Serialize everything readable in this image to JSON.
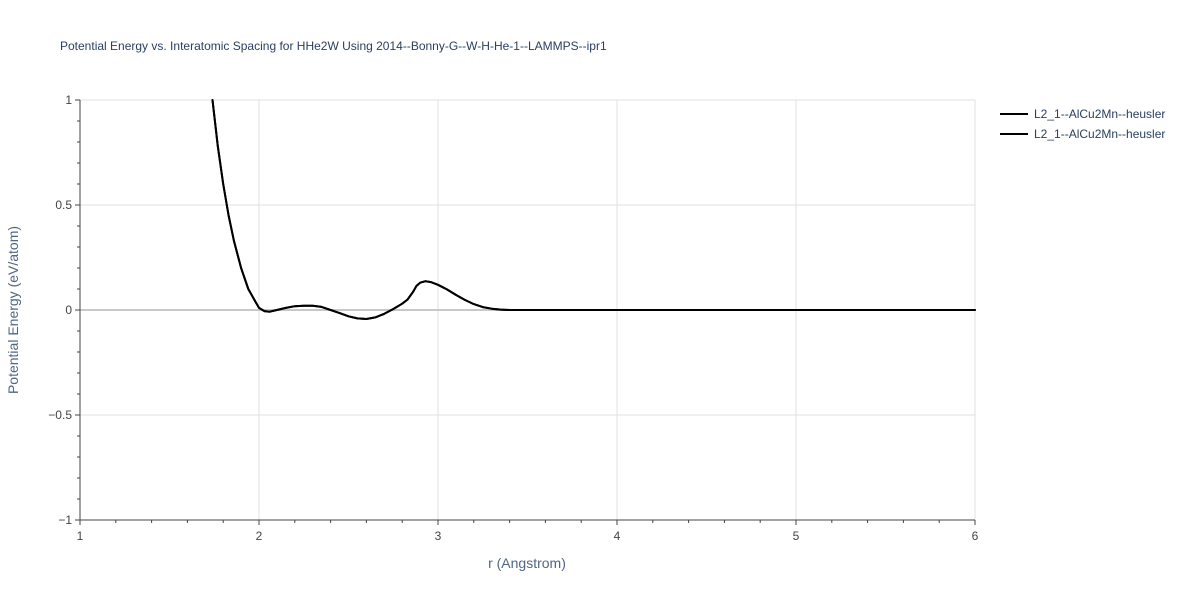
{
  "chart_data": {
    "type": "line",
    "title": "Potential Energy vs. Interatomic Spacing for HHe2W Using 2014--Bonny-G--W-H-He-1--LAMMPS--ipr1",
    "xlabel": "r (Angstrom)",
    "ylabel": "Potential Energy (eV/atom)",
    "xlim": [
      1,
      6
    ],
    "ylim": [
      -1,
      1
    ],
    "x_ticks": [
      1,
      2,
      3,
      4,
      5,
      6
    ],
    "x_tick_labels": [
      "1",
      "2",
      "3",
      "4",
      "5",
      "6"
    ],
    "y_ticks": [
      -1,
      -0.5,
      0,
      0.5,
      1
    ],
    "y_tick_labels": [
      "−1",
      "−0.5",
      "0",
      "0.5",
      "1"
    ],
    "grid": true,
    "legend_position": "top-right",
    "line_color": "#000000",
    "series": [
      {
        "name": "L2_1--AlCu2Mn--heusler",
        "x": [
          1.74,
          1.77,
          1.8,
          1.83,
          1.86,
          1.9,
          1.94,
          1.98,
          2.0,
          2.03,
          2.06,
          2.1,
          2.15,
          2.2,
          2.25,
          2.3,
          2.35,
          2.4,
          2.45,
          2.5,
          2.55,
          2.6,
          2.65,
          2.7,
          2.75,
          2.8,
          2.83,
          2.86,
          2.88,
          2.9,
          2.93,
          2.96,
          3.0,
          3.05,
          3.1,
          3.15,
          3.2,
          3.25,
          3.3,
          3.35,
          3.4,
          3.6,
          4.0,
          5.0,
          6.0
        ],
        "y": [
          1.0,
          0.78,
          0.6,
          0.45,
          0.33,
          0.2,
          0.1,
          0.04,
          0.01,
          -0.005,
          -0.008,
          0.0,
          0.01,
          0.018,
          0.02,
          0.02,
          0.015,
          0.0,
          -0.015,
          -0.03,
          -0.04,
          -0.043,
          -0.035,
          -0.018,
          0.005,
          0.03,
          0.05,
          0.085,
          0.115,
          0.13,
          0.137,
          0.133,
          0.12,
          0.098,
          0.072,
          0.048,
          0.028,
          0.014,
          0.006,
          0.002,
          0.0,
          0.0,
          0.0,
          0.0,
          0.0
        ]
      },
      {
        "name": "L2_1--AlCu2Mn--heusler",
        "x": [
          1.74,
          1.77,
          1.8,
          1.83,
          1.86,
          1.9,
          1.94,
          1.98,
          2.0,
          2.03,
          2.06,
          2.1,
          2.15,
          2.2,
          2.25,
          2.3,
          2.35,
          2.4,
          2.45,
          2.5,
          2.55,
          2.6,
          2.65,
          2.7,
          2.75,
          2.8,
          2.83,
          2.86,
          2.88,
          2.9,
          2.93,
          2.96,
          3.0,
          3.05,
          3.1,
          3.15,
          3.2,
          3.25,
          3.3,
          3.35,
          3.4,
          3.6,
          4.0,
          5.0,
          6.0
        ],
        "y": [
          1.0,
          0.78,
          0.6,
          0.45,
          0.33,
          0.2,
          0.1,
          0.04,
          0.01,
          -0.005,
          -0.008,
          0.0,
          0.01,
          0.018,
          0.02,
          0.02,
          0.015,
          0.0,
          -0.015,
          -0.03,
          -0.04,
          -0.043,
          -0.035,
          -0.018,
          0.005,
          0.03,
          0.05,
          0.085,
          0.115,
          0.13,
          0.137,
          0.133,
          0.12,
          0.098,
          0.072,
          0.048,
          0.028,
          0.014,
          0.006,
          0.002,
          0.0,
          0.0,
          0.0,
          0.0,
          0.0
        ]
      }
    ]
  }
}
